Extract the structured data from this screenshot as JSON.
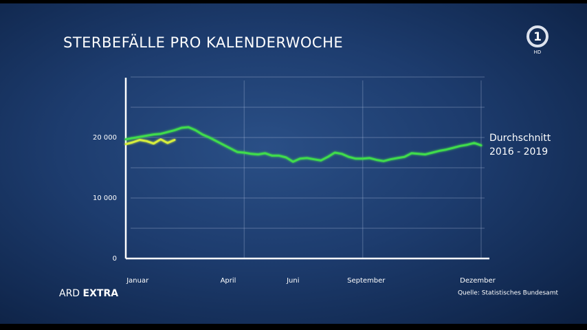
{
  "chart_data": {
    "type": "line",
    "title": "STERBEFÄLLE PRO KALENDERWOCHE",
    "source": "Quelle: Statistisches Bundesamt",
    "x": [
      1,
      2,
      3,
      4,
      5,
      6,
      7,
      8,
      9,
      10,
      11,
      12,
      13,
      14,
      15,
      16,
      17,
      18,
      19,
      20,
      21,
      22,
      23,
      24,
      25,
      26,
      27,
      28,
      29,
      30,
      31,
      32,
      33,
      34,
      35,
      36,
      37,
      38,
      39,
      40,
      41,
      42,
      43,
      44,
      45,
      46,
      47,
      48,
      49,
      50,
      51,
      52
    ],
    "series": [
      {
        "name": "Durchschnitt 2016 - 2019",
        "color": "#3fdc4c",
        "values": [
          19700,
          19900,
          20100,
          20300,
          20500,
          20600,
          20900,
          21200,
          21600,
          21700,
          21200,
          20500,
          20000,
          19400,
          18800,
          18200,
          17600,
          17500,
          17300,
          17200,
          17400,
          17000,
          17000,
          16700,
          16000,
          16500,
          16600,
          16400,
          16200,
          16800,
          17500,
          17300,
          16800,
          16500,
          16500,
          16600,
          16300,
          16100,
          16400,
          16600,
          16800,
          17400,
          17300,
          17200,
          17500,
          17800,
          18000,
          18300,
          18600,
          18800,
          19100,
          18700
        ]
      },
      {
        "color": "#d6ee3c",
        "values": [
          18900,
          19200,
          19600,
          19400,
          19000,
          19700,
          19100,
          19600,
          null,
          null,
          null,
          null,
          null,
          null,
          null,
          null,
          null,
          null,
          null,
          null,
          null,
          null,
          null,
          null,
          null,
          null,
          null,
          null,
          null,
          null,
          null,
          null,
          null,
          null,
          null,
          null,
          null,
          null,
          null,
          null,
          null,
          null,
          null,
          null,
          null,
          null,
          null,
          null,
          null,
          null,
          null,
          null
        ]
      }
    ],
    "xlim": [
      1,
      52
    ],
    "xticks": [
      {
        "value": 2.7,
        "label": "Januar"
      },
      {
        "value": 15.7,
        "label": "April"
      },
      {
        "value": 25,
        "label": "Juni"
      },
      {
        "value": 35.5,
        "label": "September"
      },
      {
        "value": 51.5,
        "label": "Dezember"
      }
    ],
    "xgrid": [
      18,
      35,
      52
    ],
    "ylim": [
      0,
      30000
    ],
    "yticks": [
      0,
      {
        "value": 5000,
        "label": null
      },
      {
        "value": 10000,
        "label": "10 000"
      },
      {
        "value": 15000,
        "label": null
      },
      {
        "value": 20000,
        "label": "20 000"
      },
      {
        "value": 25000,
        "label": null
      },
      {
        "value": 30000,
        "label": null
      }
    ],
    "grid": true
  },
  "branding": {
    "program": "ARD",
    "program_bold": "EXTRA"
  },
  "logo": {
    "number": "1",
    "badge": "HD"
  }
}
